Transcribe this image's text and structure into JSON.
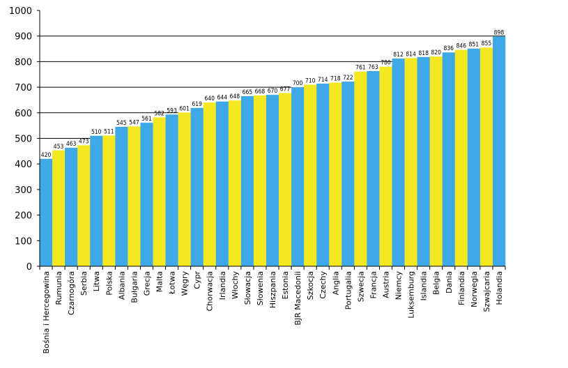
{
  "chart_data": {
    "type": "bar",
    "title": "",
    "xlabel": "",
    "ylabel": "",
    "ylim": [
      0,
      1000
    ],
    "yticks": [
      0,
      100,
      200,
      300,
      400,
      500,
      600,
      700,
      800,
      900,
      1000
    ],
    "grid": "partial horizontal lines",
    "colors": {
      "blue": "#3fa9e8",
      "yellow": "#f4e823",
      "grid": "#000000"
    },
    "categories": [
      "Bośnia i Hercegowina",
      "Rumunia",
      "Czarnogóra",
      "Serbia",
      "Litwa",
      "Polska",
      "Albania",
      "Bułgaria",
      "Grecja",
      "Malta",
      "Łotwa",
      "Węgry",
      "Cypr",
      "Chorwacja",
      "Irlandia",
      "Włochy",
      "Słowacja",
      "Słowenia",
      "Hiszpania",
      "Estonia",
      "BJR Macedonii",
      "Szkocja",
      "Czechy",
      "Anglia",
      "Portugalia",
      "Szwecja",
      "Francja",
      "Austria",
      "Niemcy",
      "Luksemburg",
      "Islandia",
      "Belgia",
      "Dania",
      "Finlandia",
      "Norwegia",
      "Szwajcaria",
      "Holandia"
    ],
    "values": [
      420,
      453,
      463,
      473,
      510,
      511,
      545,
      547,
      561,
      582,
      593,
      601,
      619,
      640,
      644,
      648,
      665,
      668,
      670,
      677,
      700,
      710,
      714,
      718,
      722,
      761,
      763,
      780,
      812,
      814,
      818,
      820,
      836,
      846,
      851,
      855,
      898
    ],
    "bar_colors": [
      "blue",
      "yellow",
      "blue",
      "yellow",
      "blue",
      "yellow",
      "blue",
      "yellow",
      "blue",
      "yellow",
      "blue",
      "yellow",
      "blue",
      "yellow",
      "blue",
      "yellow",
      "blue",
      "yellow",
      "blue",
      "yellow",
      "blue",
      "yellow",
      "blue",
      "yellow",
      "blue",
      "yellow",
      "blue",
      "yellow",
      "blue",
      "yellow",
      "blue",
      "yellow",
      "blue",
      "yellow",
      "blue",
      "yellow",
      "blue"
    ],
    "data_labels": [
      "420",
      "453",
      "463",
      "473",
      "510",
      "511",
      "545",
      "547",
      "561",
      "582",
      "593",
      "601",
      "619",
      "640",
      "644",
      "648",
      "665",
      "668",
      "670",
      "677",
      "700",
      "710",
      "714",
      "718",
      "722",
      "761",
      "763",
      "780",
      "812",
      "814",
      "818",
      "820",
      "836",
      "846",
      "851",
      "855",
      "898"
    ]
  }
}
